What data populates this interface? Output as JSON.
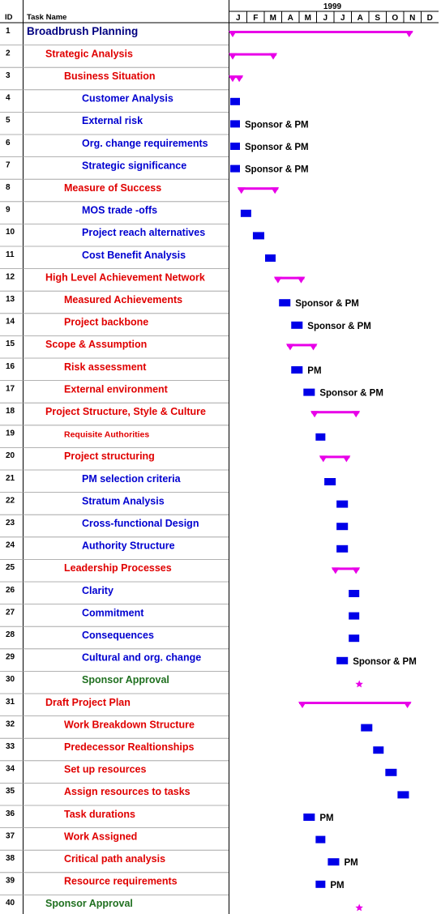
{
  "header": {
    "id_label": "ID",
    "task_label": "Task Name",
    "year": "1999",
    "months": [
      "J",
      "F",
      "M",
      "A",
      "M",
      "J",
      "J",
      "A",
      "S",
      "O",
      "N",
      "D"
    ]
  },
  "colors": {
    "summary": "#e800e8",
    "task_bar": "#0000e8",
    "level1": "#000080",
    "level2": "#e00000",
    "level3": "#e00000",
    "level4": "#0000d0",
    "milestone_text": "#207020",
    "grid": "#000000"
  },
  "tasks": [
    {
      "id": "1",
      "name": "Broadbrush Planning",
      "level": 1,
      "type": "summary",
      "start": 0.0,
      "end": 10.5,
      "resource": ""
    },
    {
      "id": "2",
      "name": "Strategic Analysis",
      "level": 2,
      "type": "summary",
      "start": 0.0,
      "end": 2.7,
      "resource": ""
    },
    {
      "id": "3",
      "name": "Business Situation",
      "level": 3,
      "type": "summary",
      "start": 0.0,
      "end": 0.75,
      "resource": ""
    },
    {
      "id": "4",
      "name": "Customer Analysis",
      "level": 4,
      "type": "task",
      "start": 0.0,
      "end": 0.6,
      "resource": ""
    },
    {
      "id": "5",
      "name": "External risk",
      "level": 4,
      "type": "task",
      "start": 0.0,
      "end": 0.6,
      "resource": "Sponsor & PM"
    },
    {
      "id": "6",
      "name": "Org. change requirements",
      "level": 4,
      "type": "task",
      "start": 0.0,
      "end": 0.6,
      "resource": "Sponsor & PM"
    },
    {
      "id": "7",
      "name": "Strategic significance",
      "level": 4,
      "type": "task",
      "start": 0.0,
      "end": 0.6,
      "resource": "Sponsor & PM"
    },
    {
      "id": "8",
      "name": "Measure of Success",
      "level": 3,
      "type": "summary",
      "start": 0.5,
      "end": 2.8,
      "resource": ""
    },
    {
      "id": "9",
      "name": "MOS trade -offs",
      "level": 4,
      "type": "task",
      "start": 0.6,
      "end": 1.25,
      "resource": ""
    },
    {
      "id": "10",
      "name": "Project reach alternatives",
      "level": 4,
      "type": "task",
      "start": 1.3,
      "end": 2.0,
      "resource": ""
    },
    {
      "id": "11",
      "name": "Cost Benefit Analysis",
      "level": 4,
      "type": "task",
      "start": 2.0,
      "end": 2.65,
      "resource": ""
    },
    {
      "id": "12",
      "name": "High Level Achievement Network",
      "level": 2,
      "type": "summary",
      "start": 2.6,
      "end": 4.3,
      "resource": ""
    },
    {
      "id": "13",
      "name": "Measured Achievements",
      "level": 3,
      "type": "task",
      "start": 2.8,
      "end": 3.5,
      "resource": "Sponsor & PM"
    },
    {
      "id": "14",
      "name": "Project backbone",
      "level": 3,
      "type": "task",
      "start": 3.5,
      "end": 4.2,
      "resource": "Sponsor & PM"
    },
    {
      "id": "15",
      "name": "Scope & Assumption",
      "level": 2,
      "type": "summary",
      "start": 3.3,
      "end": 5.0,
      "resource": ""
    },
    {
      "id": "16",
      "name": "Risk assessment",
      "level": 3,
      "type": "task",
      "start": 3.5,
      "end": 4.2,
      "resource": "PM"
    },
    {
      "id": "17",
      "name": "External environment",
      "level": 3,
      "type": "task",
      "start": 4.2,
      "end": 4.9,
      "resource": "Sponsor & PM"
    },
    {
      "id": "18",
      "name": "Project Structure, Style & Culture",
      "level": 2,
      "type": "summary",
      "start": 4.7,
      "end": 7.45,
      "resource": ""
    },
    {
      "id": "19",
      "name": "Requisite Authorities",
      "level": 3,
      "type": "task",
      "start": 4.9,
      "end": 5.3,
      "resource": ""
    },
    {
      "id": "20",
      "name": "Project structuring",
      "level": 3,
      "type": "summary",
      "start": 5.2,
      "end": 6.9,
      "resource": ""
    },
    {
      "id": "21",
      "name": "PM selection criteria",
      "level": 4,
      "type": "task",
      "start": 5.4,
      "end": 6.1,
      "resource": ""
    },
    {
      "id": "22",
      "name": "Stratum Analysis",
      "level": 4,
      "type": "task",
      "start": 6.1,
      "end": 6.8,
      "resource": ""
    },
    {
      "id": "23",
      "name": "Cross-functional Design",
      "level": 4,
      "type": "task",
      "start": 6.1,
      "end": 6.8,
      "resource": ""
    },
    {
      "id": "24",
      "name": "Authority Structure",
      "level": 4,
      "type": "task",
      "start": 6.1,
      "end": 6.8,
      "resource": ""
    },
    {
      "id": "25",
      "name": "Leadership Processes",
      "level": 3,
      "type": "summary",
      "start": 5.9,
      "end": 7.45,
      "resource": ""
    },
    {
      "id": "26",
      "name": "Clarity",
      "level": 4,
      "type": "task",
      "start": 6.8,
      "end": 7.45,
      "resource": ""
    },
    {
      "id": "27",
      "name": "Commitment",
      "level": 4,
      "type": "task",
      "start": 6.8,
      "end": 7.45,
      "resource": ""
    },
    {
      "id": "28",
      "name": "Consequences",
      "level": 4,
      "type": "task",
      "start": 6.8,
      "end": 7.45,
      "resource": ""
    },
    {
      "id": "29",
      "name": "Cultural and org. change",
      "level": 4,
      "type": "task",
      "start": 6.1,
      "end": 6.8,
      "resource": "Sponsor & PM"
    },
    {
      "id": "30",
      "name": "Sponsor Approval",
      "level": 4,
      "type": "milestone",
      "start": 7.45,
      "end": 7.45,
      "resource": ""
    },
    {
      "id": "31",
      "name": "Draft Project Plan",
      "level": 2,
      "type": "summary",
      "start": 4.0,
      "end": 10.4,
      "resource": ""
    },
    {
      "id": "32",
      "name": "Work Breakdown Structure",
      "level": 3,
      "type": "task",
      "start": 7.5,
      "end": 8.2,
      "resource": ""
    },
    {
      "id": "33",
      "name": "Predecessor Realtionships",
      "level": 3,
      "type": "task",
      "start": 8.2,
      "end": 8.85,
      "resource": ""
    },
    {
      "id": "34",
      "name": "Set up resources",
      "level": 3,
      "type": "task",
      "start": 8.9,
      "end": 9.6,
      "resource": ""
    },
    {
      "id": "35",
      "name": "Assign resources to tasks",
      "level": 3,
      "type": "task",
      "start": 9.6,
      "end": 10.3,
      "resource": ""
    },
    {
      "id": "36",
      "name": "Task durations",
      "level": 3,
      "type": "task",
      "start": 4.2,
      "end": 4.9,
      "resource": "PM"
    },
    {
      "id": "37",
      "name": "Work Assigned",
      "level": 3,
      "type": "task",
      "start": 4.9,
      "end": 5.5,
      "resource": ""
    },
    {
      "id": "38",
      "name": "Critical path analysis",
      "level": 3,
      "type": "task",
      "start": 5.6,
      "end": 6.3,
      "resource": "PM"
    },
    {
      "id": "39",
      "name": "Resource requirements",
      "level": 3,
      "type": "task",
      "start": 4.9,
      "end": 5.5,
      "resource": "PM"
    },
    {
      "id": "40",
      "name": "Sponsor Approval",
      "level": 2,
      "type": "milestone",
      "start": 7.45,
      "end": 7.45,
      "resource": ""
    }
  ]
}
